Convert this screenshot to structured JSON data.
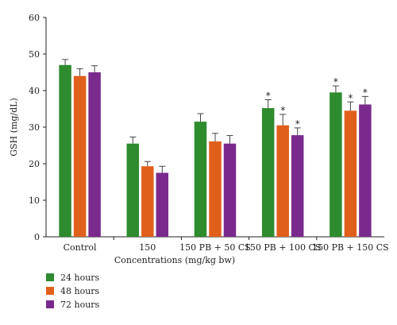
{
  "chart_data": {
    "type": "bar",
    "xlabel": "Concentrations (mg/kg bw)",
    "ylabel": "GSH (mg/dL)",
    "ylim": [
      0,
      60
    ],
    "yticks": [
      0,
      10,
      20,
      30,
      40,
      50,
      60
    ],
    "grid": false,
    "legend_position": "bottom-left",
    "categories": [
      "Control",
      "150",
      "150 PB + 50 CS",
      "150 PB + 100 CS",
      "150 PB + 150 CS"
    ],
    "series": [
      {
        "name": "24 hours",
        "color": "#2e8b2e",
        "values": [
          47,
          25.5,
          31.5,
          35.2,
          39.5
        ],
        "errors": [
          1.5,
          1.8,
          2.2,
          2.3,
          1.8
        ],
        "significant": [
          false,
          false,
          false,
          true,
          true
        ]
      },
      {
        "name": "48 hours",
        "color": "#e0601b",
        "values": [
          44,
          19.3,
          26.1,
          30.5,
          34.5
        ],
        "errors": [
          2.0,
          1.3,
          2.2,
          3.0,
          2.4
        ],
        "significant": [
          false,
          false,
          false,
          true,
          true
        ]
      },
      {
        "name": "72 hours",
        "color": "#7a2a8c",
        "values": [
          45,
          17.5,
          25.5,
          27.8,
          36.2
        ],
        "errors": [
          1.8,
          1.8,
          2.2,
          2.0,
          2.2
        ],
        "significant": [
          false,
          false,
          false,
          true,
          true
        ]
      }
    ],
    "significance_marker": "*"
  }
}
